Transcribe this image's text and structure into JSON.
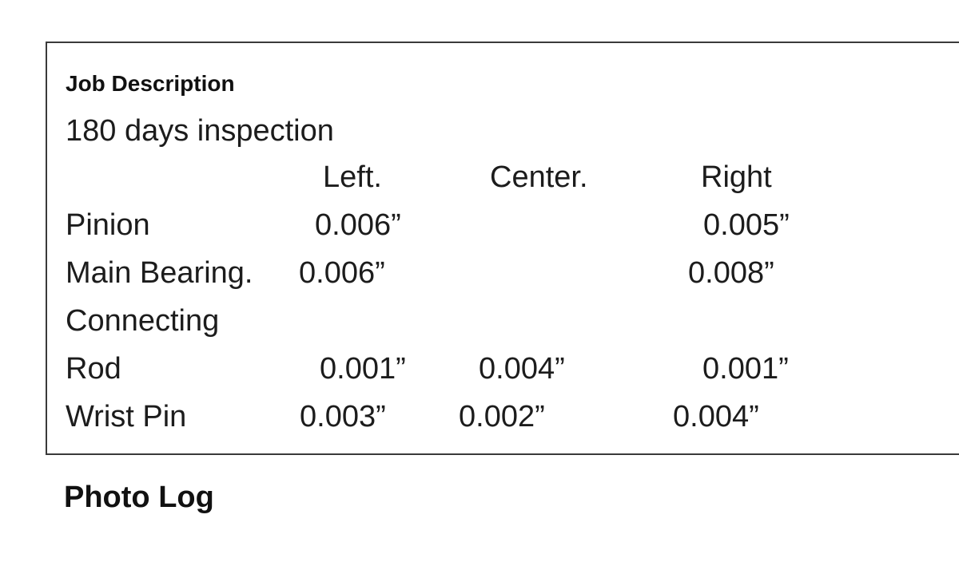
{
  "job_description": {
    "label": "Job Description",
    "text": "180 days inspection"
  },
  "measurements": {
    "columns": [
      "Left.",
      "Center.",
      "Right"
    ],
    "rows": [
      {
        "label": "Pinion",
        "left": "0.006”",
        "center": "",
        "right": "0.005”"
      },
      {
        "label": "Main Bearing.",
        "left": "0.006”",
        "center": "",
        "right": "0.008”"
      },
      {
        "label": "Connecting",
        "left": "",
        "center": "",
        "right": ""
      },
      {
        "label": "Rod",
        "left": "0.001”",
        "center": "0.004”",
        "right": "0.001”"
      },
      {
        "label": "Wrist Pin",
        "left": "0.003”",
        "center": "0.002”",
        "right": "0.004”"
      }
    ]
  },
  "photo_log": {
    "label": "Photo Log"
  }
}
